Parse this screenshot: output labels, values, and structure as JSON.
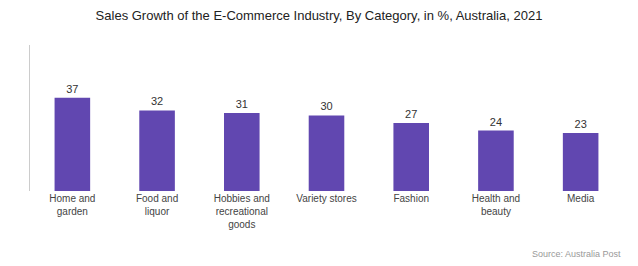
{
  "chart_data": {
    "type": "bar",
    "title": "Sales Growth of the E-Commerce Industry, By Category, in %, Australia, 2021",
    "categories": [
      "Home and\ngarden",
      "Food and\nliquor",
      "Hobbies and\nrecreational\ngoods",
      "Variety stores",
      "Fashion",
      "Health and\nbeauty",
      "Media"
    ],
    "values": [
      37,
      32,
      31,
      30,
      27,
      24,
      23
    ],
    "color": "#6147b0",
    "ylim": [
      0,
      58
    ],
    "yticks": [],
    "grid": false,
    "data_labels": true,
    "tick_labels": "x",
    "annotations": [
      "Source: Australia Post"
    ]
  }
}
